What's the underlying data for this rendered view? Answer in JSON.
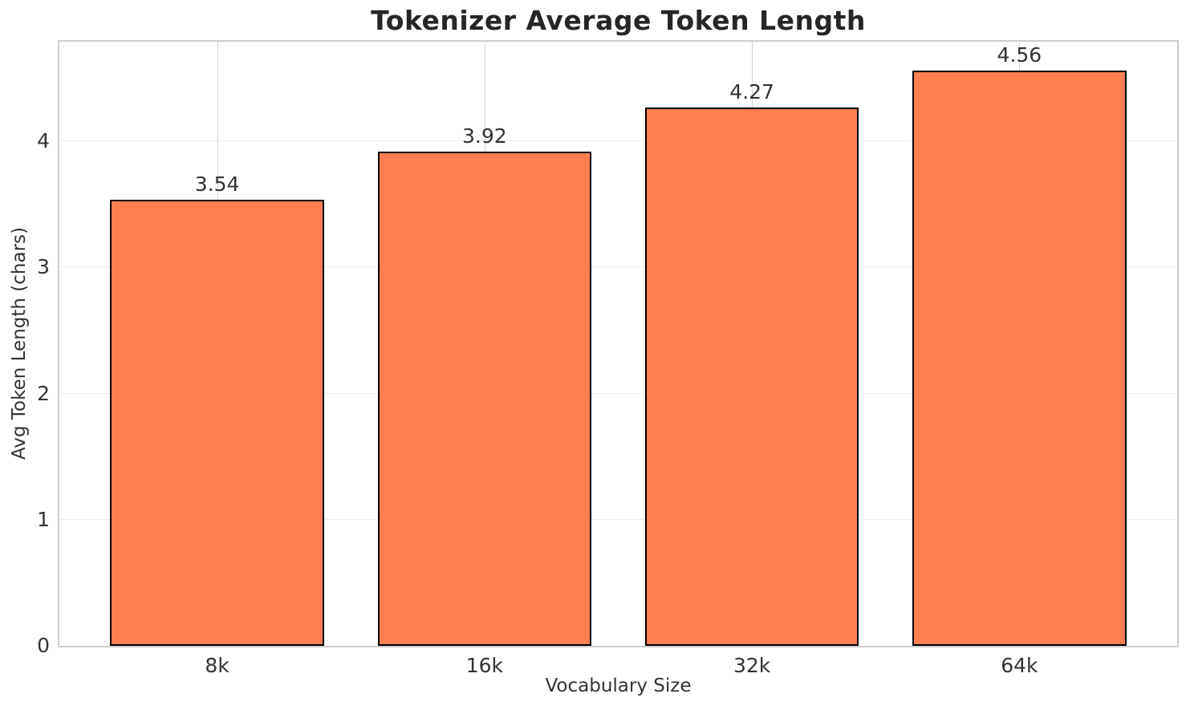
{
  "chart_data": {
    "type": "bar",
    "title": "Tokenizer Average Token Length",
    "xlabel": "Vocabulary Size",
    "ylabel": "Avg Token Length (chars)",
    "categories": [
      "8k",
      "16k",
      "32k",
      "64k"
    ],
    "values": [
      3.54,
      3.92,
      4.27,
      4.56
    ],
    "value_labels": [
      "3.54",
      "3.92",
      "4.27",
      "4.56"
    ],
    "yticks": [
      0,
      1,
      2,
      3,
      4
    ],
    "ylim": [
      0,
      4.79
    ],
    "xlim": [
      -0.59,
      3.59
    ],
    "bar_width": 0.8,
    "grid": true,
    "legend": null,
    "style": {
      "bar_color": "#ff7f50",
      "bar_edge_color": "#000000",
      "title_color": "#262626",
      "text_color": "#333333",
      "spine_color": "#cccccc",
      "hgrid_color": "#ececec",
      "vgrid_color": "#d4d4d4",
      "background": "#ffffff"
    }
  }
}
